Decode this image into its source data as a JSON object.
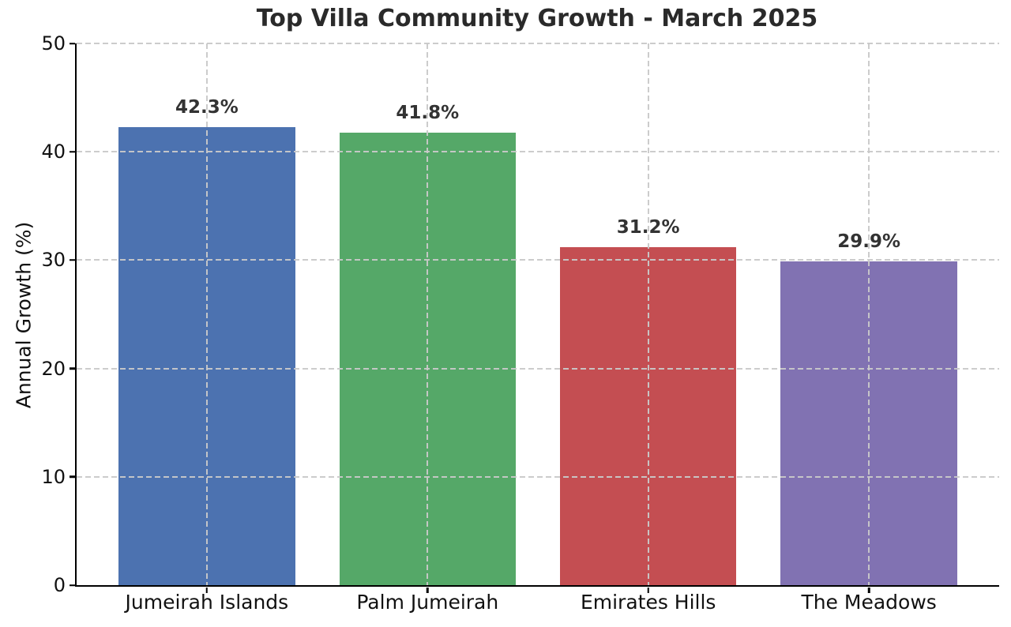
{
  "chart_data": {
    "type": "bar",
    "title": "Top Villa Community Growth - March 2025",
    "ylabel": "Annual Growth (%)",
    "xlabel": "",
    "categories": [
      "Jumeirah Islands",
      "Palm Jumeirah",
      "Emirates Hills",
      "The Meadows"
    ],
    "values": [
      42.3,
      41.8,
      31.2,
      29.9
    ],
    "value_labels": [
      "42.3%",
      "41.8%",
      "31.2%",
      "29.9%"
    ],
    "bar_colors": [
      "#4c72b0",
      "#55a868",
      "#c44e52",
      "#8172b2"
    ],
    "ylim": [
      0,
      50
    ],
    "yticks": [
      0,
      10,
      20,
      30,
      40,
      50
    ],
    "grid": {
      "horizontal": true,
      "vertical": true,
      "style": "dashed",
      "color": "#c9c9c9",
      "drawn_above_bars": true
    },
    "spine_color": "#000000",
    "legend_position": "none"
  }
}
